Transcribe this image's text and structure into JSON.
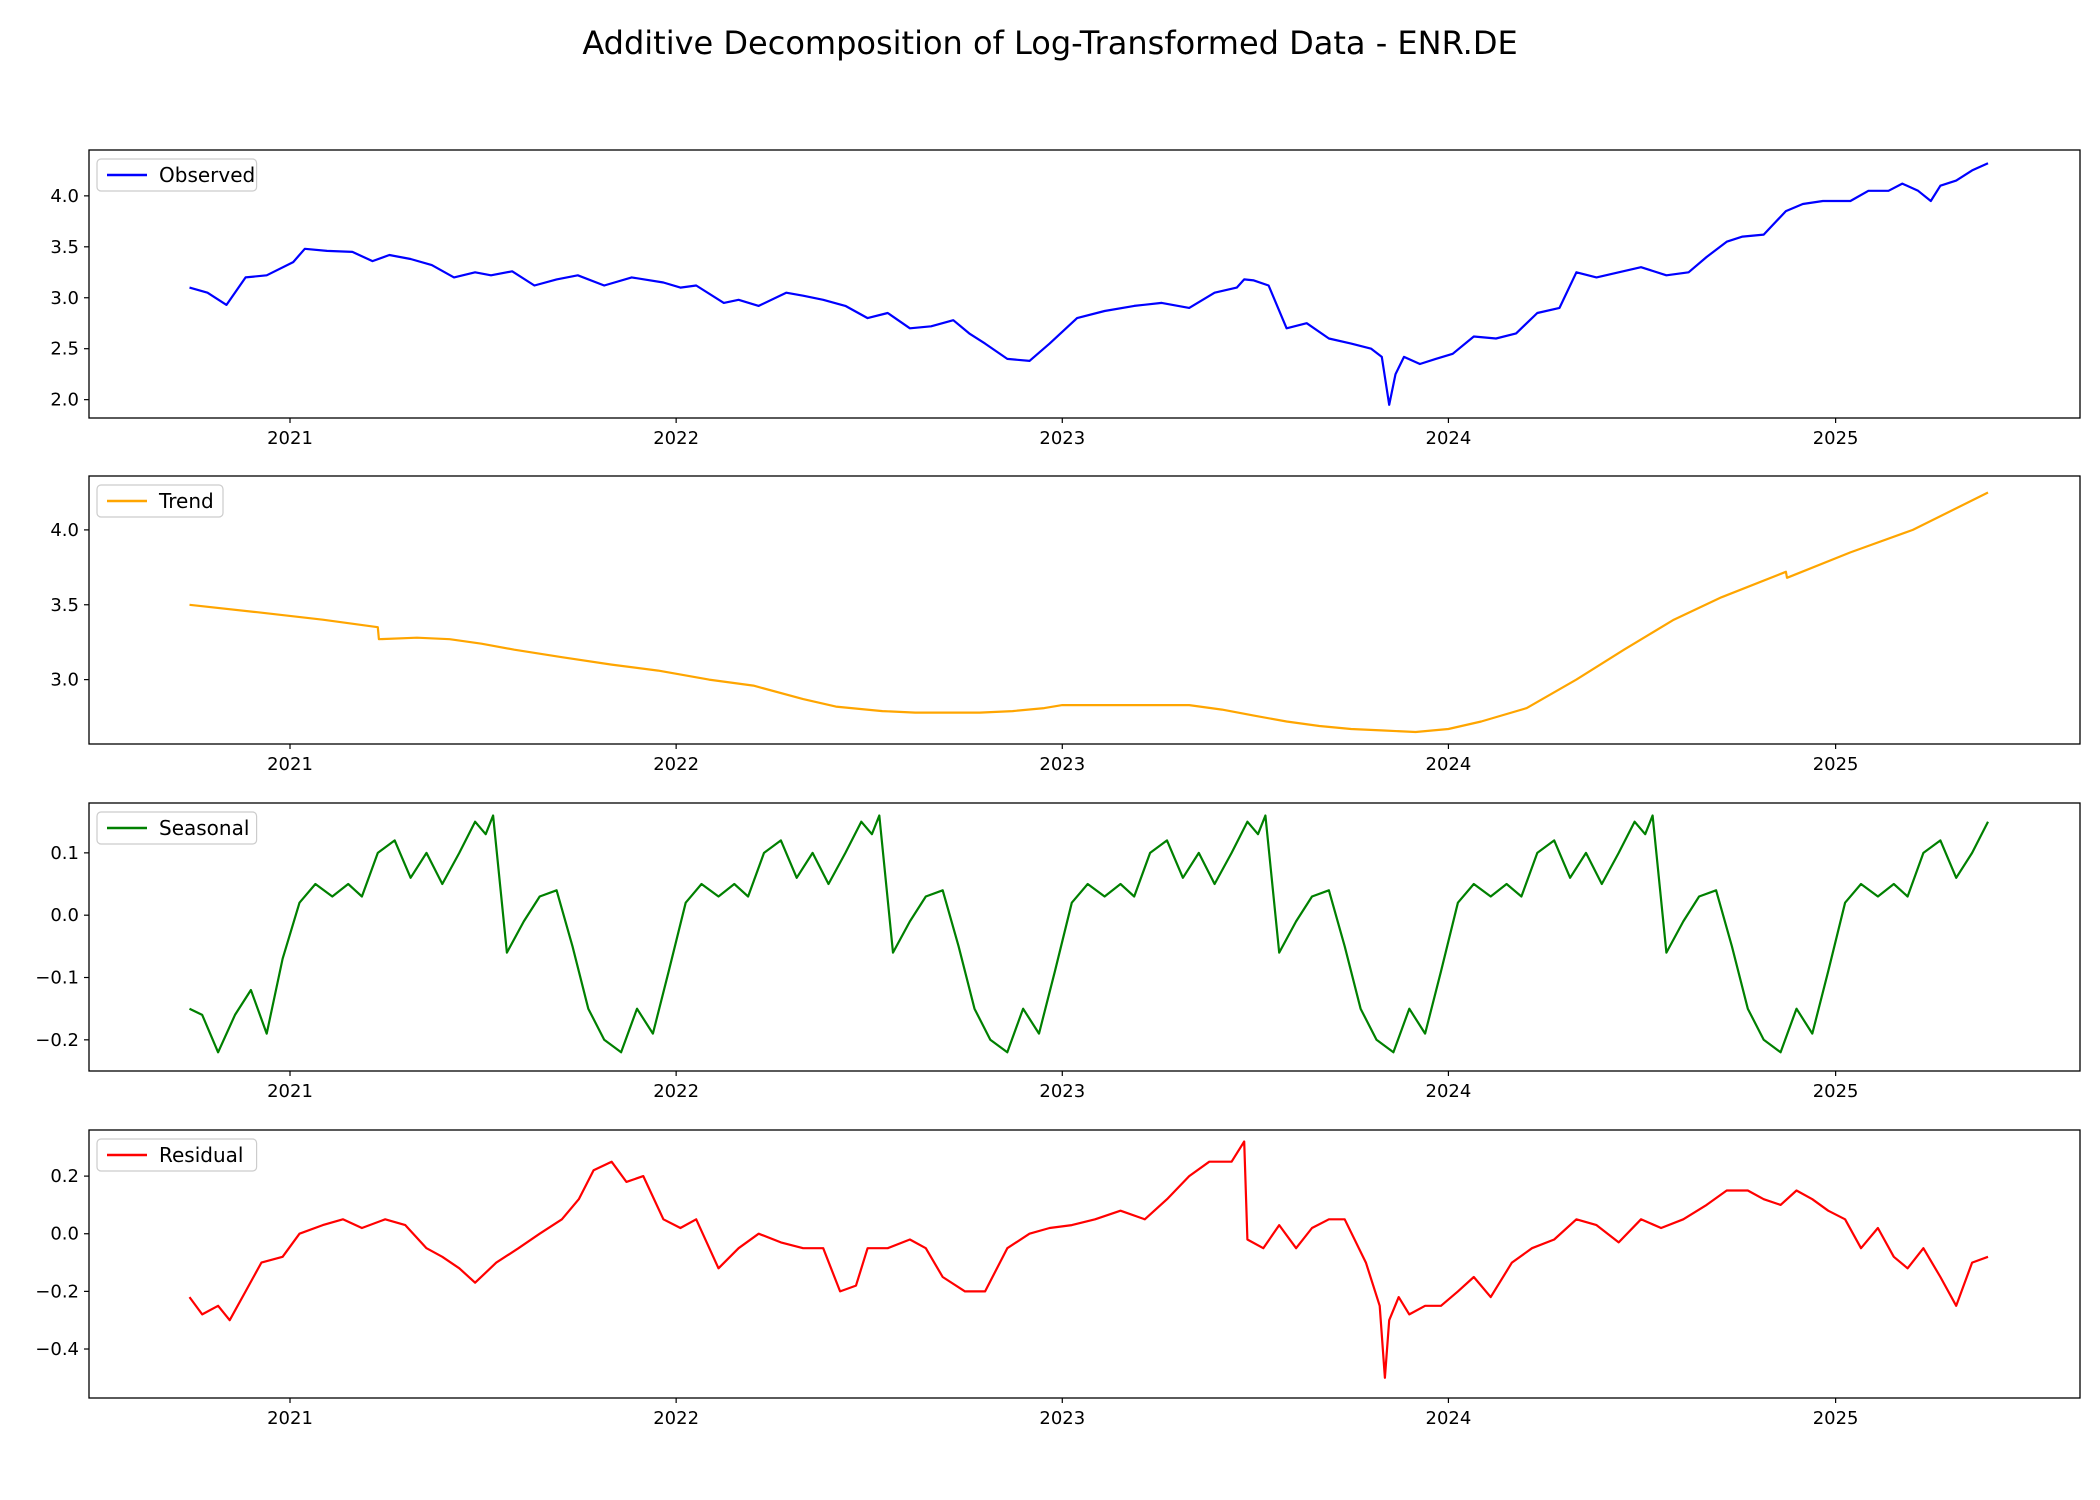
{
  "figure": {
    "title": "Additive Decomposition of Log-Transformed Data - ENR.DE"
  },
  "chart_data": [
    {
      "type": "line",
      "series": [
        {
          "name": "Observed",
          "color": "#0000ff"
        }
      ],
      "xlim": [
        "2020-06-25",
        "2025-08-20"
      ],
      "x_ticks": [
        "2021",
        "2022",
        "2023",
        "2024",
        "2025"
      ],
      "ylim": [
        1.82,
        4.45
      ],
      "y_ticks": [
        "2.0",
        "2.5",
        "3.0",
        "3.5",
        "4.0"
      ],
      "legend_position": "upper-left",
      "x": [
        "2020-09-28",
        "2020-10-15",
        "2020-11-02",
        "2020-11-20",
        "2020-12-10",
        "2021-01-04",
        "2021-01-15",
        "2021-02-05",
        "2021-03-01",
        "2021-03-20",
        "2021-04-05",
        "2021-04-25",
        "2021-05-15",
        "2021-06-05",
        "2021-06-25",
        "2021-07-10",
        "2021-07-30",
        "2021-08-20",
        "2021-09-10",
        "2021-09-30",
        "2021-10-25",
        "2021-11-20",
        "2021-12-20",
        "2022-01-05",
        "2022-01-20",
        "2022-02-15",
        "2022-03-01",
        "2022-03-20",
        "2022-04-15",
        "2022-05-01",
        "2022-05-20",
        "2022-06-10",
        "2022-07-01",
        "2022-07-20",
        "2022-08-10",
        "2022-08-30",
        "2022-09-20",
        "2022-10-05",
        "2022-10-20",
        "2022-11-10",
        "2022-12-01",
        "2022-12-20",
        "2023-01-15",
        "2023-02-10",
        "2023-03-10",
        "2023-04-05",
        "2023-05-01",
        "2023-05-25",
        "2023-06-15",
        "2023-06-22",
        "2023-07-01",
        "2023-07-15",
        "2023-08-01",
        "2023-08-20",
        "2023-09-10",
        "2023-10-01",
        "2023-10-20",
        "2023-10-30",
        "2023-11-06",
        "2023-11-12",
        "2023-11-20",
        "2023-12-05",
        "2023-12-20",
        "2024-01-05",
        "2024-01-25",
        "2024-02-15",
        "2024-03-05",
        "2024-03-25",
        "2024-04-15",
        "2024-05-01",
        "2024-05-20",
        "2024-06-10",
        "2024-07-01",
        "2024-07-25",
        "2024-08-15",
        "2024-09-01",
        "2024-09-20",
        "2024-10-05",
        "2024-10-25",
        "2024-11-15",
        "2024-12-01",
        "2024-12-20",
        "2025-01-15",
        "2025-02-01",
        "2025-02-20",
        "2025-03-05",
        "2025-03-20",
        "2025-04-01",
        "2025-04-10",
        "2025-04-25",
        "2025-05-10",
        "2025-05-25"
      ],
      "y": [
        3.1,
        3.05,
        2.93,
        3.2,
        3.22,
        3.35,
        3.48,
        3.46,
        3.45,
        3.36,
        3.42,
        3.38,
        3.32,
        3.2,
        3.25,
        3.22,
        3.26,
        3.12,
        3.18,
        3.22,
        3.12,
        3.2,
        3.15,
        3.1,
        3.12,
        2.95,
        2.98,
        2.92,
        3.05,
        3.02,
        2.98,
        2.92,
        2.8,
        2.85,
        2.7,
        2.72,
        2.78,
        2.65,
        2.55,
        2.4,
        2.38,
        2.55,
        2.8,
        2.87,
        2.92,
        2.95,
        2.9,
        3.05,
        3.1,
        3.18,
        3.17,
        3.12,
        2.7,
        2.75,
        2.6,
        2.55,
        2.5,
        2.42,
        1.95,
        2.25,
        2.42,
        2.35,
        2.4,
        2.45,
        2.62,
        2.6,
        2.65,
        2.85,
        2.9,
        3.25,
        3.2,
        3.25,
        3.3,
        3.22,
        3.25,
        3.4,
        3.55,
        3.6,
        3.62,
        3.85,
        3.92,
        3.95,
        3.95,
        4.05,
        4.05,
        4.12,
        4.05,
        3.95,
        4.1,
        4.15,
        4.25,
        4.32
      ]
    },
    {
      "type": "line",
      "series": [
        {
          "name": "Trend",
          "color": "#ffa500"
        }
      ],
      "xlim": [
        "2020-06-25",
        "2025-08-20"
      ],
      "x_ticks": [
        "2021",
        "2022",
        "2023",
        "2024",
        "2025"
      ],
      "ylim": [
        2.57,
        4.36
      ],
      "y_ticks": [
        "3.0",
        "3.5",
        "4.0"
      ],
      "legend_position": "upper-left",
      "x": [
        "2020-09-28",
        "2020-12-01",
        "2021-02-01",
        "2021-03-25",
        "2021-03-26",
        "2021-05-01",
        "2021-06-01",
        "2021-07-01",
        "2021-08-01",
        "2021-09-15",
        "2021-11-01",
        "2021-12-15",
        "2022-02-01",
        "2022-03-15",
        "2022-05-01",
        "2022-06-01",
        "2022-07-15",
        "2022-08-15",
        "2022-09-15",
        "2022-10-15",
        "2022-11-15",
        "2022-12-15",
        "2023-01-01",
        "2023-02-01",
        "2023-03-01",
        "2023-04-01",
        "2023-05-01",
        "2023-06-01",
        "2023-07-01",
        "2023-08-01",
        "2023-09-01",
        "2023-10-01",
        "2023-11-01",
        "2023-12-01",
        "2024-01-01",
        "2024-02-01",
        "2024-03-15",
        "2024-05-01",
        "2024-06-15",
        "2024-08-01",
        "2024-09-15",
        "2024-11-15",
        "2024-11-16",
        "2025-01-15",
        "2025-03-15",
        "2025-05-25"
      ],
      "y": [
        3.5,
        3.45,
        3.4,
        3.35,
        3.27,
        3.28,
        3.27,
        3.24,
        3.2,
        3.15,
        3.1,
        3.06,
        3.0,
        2.96,
        2.87,
        2.82,
        2.79,
        2.78,
        2.78,
        2.78,
        2.79,
        2.81,
        2.83,
        2.83,
        2.83,
        2.83,
        2.83,
        2.8,
        2.76,
        2.72,
        2.69,
        2.67,
        2.66,
        2.65,
        2.67,
        2.72,
        2.81,
        3.0,
        3.2,
        3.4,
        3.55,
        3.72,
        3.68,
        3.85,
        4.0,
        4.25
      ]
    },
    {
      "type": "line",
      "series": [
        {
          "name": "Seasonal",
          "color": "#008000"
        }
      ],
      "xlim": [
        "2020-06-25",
        "2025-08-20"
      ],
      "x_ticks": [
        "2021",
        "2022",
        "2023",
        "2024",
        "2025"
      ],
      "ylim": [
        -0.25,
        0.18
      ],
      "y_ticks": [
        "−0.2",
        "−0.1",
        "0.0",
        "0.1"
      ],
      "legend_position": "upper-left",
      "x": [
        "2020-09-28",
        "2020-10-10",
        "2020-10-25",
        "2020-11-10",
        "2020-11-25",
        "2020-12-10",
        "2020-12-25",
        "2021-01-10",
        "2021-01-25",
        "2021-02-10",
        "2021-02-25",
        "2021-03-10",
        "2021-03-25",
        "2021-04-10",
        "2021-04-25",
        "2021-05-10",
        "2021-05-25",
        "2021-06-10",
        "2021-06-25",
        "2021-07-05",
        "2021-07-12",
        "2021-07-25",
        "2021-08-10",
        "2021-08-25",
        "2021-09-10",
        "2021-09-25",
        "2021-10-10",
        "2021-10-25",
        "2021-11-10",
        "2021-11-25",
        "2021-12-10",
        "2021-12-25",
        "2022-01-10",
        "2022-01-25",
        "2022-02-10",
        "2022-02-25",
        "2022-03-10",
        "2022-03-25",
        "2022-04-10",
        "2022-04-25",
        "2022-05-10",
        "2022-05-25",
        "2022-06-10",
        "2022-06-25",
        "2022-07-05",
        "2022-07-12",
        "2022-07-25",
        "2022-08-10",
        "2022-08-25",
        "2022-09-10",
        "2022-09-25",
        "2022-10-10",
        "2022-10-25",
        "2022-11-10",
        "2022-11-25",
        "2022-12-10",
        "2022-12-25",
        "2023-01-10",
        "2023-01-25",
        "2023-02-10",
        "2023-02-25",
        "2023-03-10",
        "2023-03-25",
        "2023-04-10",
        "2023-04-25",
        "2023-05-10",
        "2023-05-25",
        "2023-06-10",
        "2023-06-25",
        "2023-07-05",
        "2023-07-12",
        "2023-07-25",
        "2023-08-10",
        "2023-08-25",
        "2023-09-10",
        "2023-09-25",
        "2023-10-10",
        "2023-10-25",
        "2023-11-10",
        "2023-11-25",
        "2023-12-10",
        "2023-12-25",
        "2024-01-10",
        "2024-01-25",
        "2024-02-10",
        "2024-02-25",
        "2024-03-10",
        "2024-03-25",
        "2024-04-10",
        "2024-04-25",
        "2024-05-10",
        "2024-05-25",
        "2024-06-10",
        "2024-06-25",
        "2024-07-05",
        "2024-07-12",
        "2024-07-25",
        "2024-08-10",
        "2024-08-25",
        "2024-09-10",
        "2024-09-25",
        "2024-10-10",
        "2024-10-25",
        "2024-11-10",
        "2024-11-25",
        "2024-12-10",
        "2024-12-25",
        "2025-01-10",
        "2025-01-25",
        "2025-02-10",
        "2025-02-25",
        "2025-03-10",
        "2025-03-25",
        "2025-04-10",
        "2025-04-25",
        "2025-05-10",
        "2025-05-25"
      ],
      "y": [
        -0.15,
        -0.16,
        -0.22,
        -0.16,
        -0.12,
        -0.19,
        -0.07,
        0.02,
        0.05,
        0.03,
        0.05,
        0.03,
        0.1,
        0.12,
        0.06,
        0.1,
        0.05,
        0.1,
        0.15,
        0.13,
        0.16,
        -0.06,
        -0.01,
        0.03,
        0.04,
        -0.05,
        -0.15,
        -0.2,
        -0.22,
        -0.15,
        -0.19,
        -0.09,
        0.02,
        0.05,
        0.03,
        0.05,
        0.03,
        0.1,
        0.12,
        0.06,
        0.1,
        0.05,
        0.1,
        0.15,
        0.13,
        0.16,
        -0.06,
        -0.01,
        0.03,
        0.04,
        -0.05,
        -0.15,
        -0.2,
        -0.22,
        -0.15,
        -0.19,
        -0.09,
        0.02,
        0.05,
        0.03,
        0.05,
        0.03,
        0.1,
        0.12,
        0.06,
        0.1,
        0.05,
        0.1,
        0.15,
        0.13,
        0.16,
        -0.06,
        -0.01,
        0.03,
        0.04,
        -0.05,
        -0.15,
        -0.2,
        -0.22,
        -0.15,
        -0.19,
        -0.09,
        0.02,
        0.05,
        0.03,
        0.05,
        0.03,
        0.1,
        0.12,
        0.06,
        0.1,
        0.05,
        0.1,
        0.15,
        0.13,
        0.16,
        -0.06,
        -0.01,
        0.03,
        0.04,
        -0.05,
        -0.15,
        -0.2,
        -0.22,
        -0.15,
        -0.19,
        -0.09,
        0.02,
        0.05,
        0.03,
        0.05,
        0.03,
        0.1,
        0.12,
        0.06,
        0.1,
        0.15
      ]
    },
    {
      "type": "line",
      "series": [
        {
          "name": "Residual",
          "color": "#ff0000"
        }
      ],
      "xlim": [
        "2020-06-25",
        "2025-08-20"
      ],
      "x_ticks": [
        "2021",
        "2022",
        "2023",
        "2024",
        "2025"
      ],
      "ylim": [
        -0.57,
        0.36
      ],
      "y_ticks": [
        "−0.4",
        "−0.2",
        "0.0",
        "0.2"
      ],
      "legend_position": "upper-left",
      "x": [
        "2020-09-28",
        "2020-10-10",
        "2020-10-25",
        "2020-11-05",
        "2020-11-20",
        "2020-12-05",
        "2020-12-25",
        "2021-01-10",
        "2021-02-01",
        "2021-02-20",
        "2021-03-10",
        "2021-04-01",
        "2021-04-20",
        "2021-05-10",
        "2021-05-25",
        "2021-06-10",
        "2021-06-25",
        "2021-07-15",
        "2021-08-05",
        "2021-08-25",
        "2021-09-15",
        "2021-10-01",
        "2021-10-15",
        "2021-11-01",
        "2021-11-15",
        "2021-12-01",
        "2021-12-20",
        "2022-01-05",
        "2022-01-20",
        "2022-02-10",
        "2022-03-01",
        "2022-03-20",
        "2022-04-10",
        "2022-05-01",
        "2022-05-20",
        "2022-06-05",
        "2022-06-20",
        "2022-07-01",
        "2022-07-20",
        "2022-08-10",
        "2022-08-25",
        "2022-09-10",
        "2022-10-01",
        "2022-10-20",
        "2022-11-10",
        "2022-12-01",
        "2022-12-20",
        "2023-01-10",
        "2023-02-01",
        "2023-02-25",
        "2023-03-20",
        "2023-04-10",
        "2023-05-01",
        "2023-05-20",
        "2023-06-10",
        "2023-06-22",
        "2023-06-25",
        "2023-07-10",
        "2023-07-25",
        "2023-08-10",
        "2023-08-25",
        "2023-09-10",
        "2023-09-25",
        "2023-10-15",
        "2023-10-28",
        "2023-11-02",
        "2023-11-06",
        "2023-11-15",
        "2023-11-25",
        "2023-12-10",
        "2023-12-25",
        "2024-01-10",
        "2024-01-25",
        "2024-02-10",
        "2024-03-01",
        "2024-03-20",
        "2024-04-10",
        "2024-05-01",
        "2024-05-20",
        "2024-06-10",
        "2024-07-01",
        "2024-07-20",
        "2024-08-10",
        "2024-09-01",
        "2024-09-20",
        "2024-10-10",
        "2024-10-25",
        "2024-11-10",
        "2024-11-25",
        "2024-12-10",
        "2024-12-25",
        "2025-01-10",
        "2025-01-25",
        "2025-02-10",
        "2025-02-25",
        "2025-03-10",
        "2025-03-25",
        "2025-04-10",
        "2025-04-25",
        "2025-05-10",
        "2025-05-25"
      ],
      "y": [
        -0.22,
        -0.28,
        -0.25,
        -0.3,
        -0.2,
        -0.1,
        -0.08,
        0.0,
        0.03,
        0.05,
        0.02,
        0.05,
        0.03,
        -0.05,
        -0.08,
        -0.12,
        -0.17,
        -0.1,
        -0.05,
        0.0,
        0.05,
        0.12,
        0.22,
        0.25,
        0.18,
        0.2,
        0.05,
        0.02,
        0.05,
        -0.12,
        -0.05,
        0.0,
        -0.03,
        -0.05,
        -0.05,
        -0.2,
        -0.18,
        -0.05,
        -0.05,
        -0.02,
        -0.05,
        -0.15,
        -0.2,
        -0.2,
        -0.05,
        0.0,
        0.02,
        0.03,
        0.05,
        0.08,
        0.05,
        0.12,
        0.2,
        0.25,
        0.25,
        0.32,
        -0.02,
        -0.05,
        0.03,
        -0.05,
        0.02,
        0.05,
        0.05,
        -0.1,
        -0.25,
        -0.5,
        -0.3,
        -0.22,
        -0.28,
        -0.25,
        -0.25,
        -0.2,
        -0.15,
        -0.22,
        -0.1,
        -0.05,
        -0.02,
        0.05,
        0.03,
        -0.03,
        0.05,
        0.02,
        0.05,
        0.1,
        0.15,
        0.15,
        0.12,
        0.1,
        0.15,
        0.12,
        0.08,
        0.05,
        -0.05,
        0.02,
        -0.08,
        -0.12,
        -0.05,
        -0.15,
        -0.25,
        -0.1,
        -0.08
      ]
    }
  ]
}
